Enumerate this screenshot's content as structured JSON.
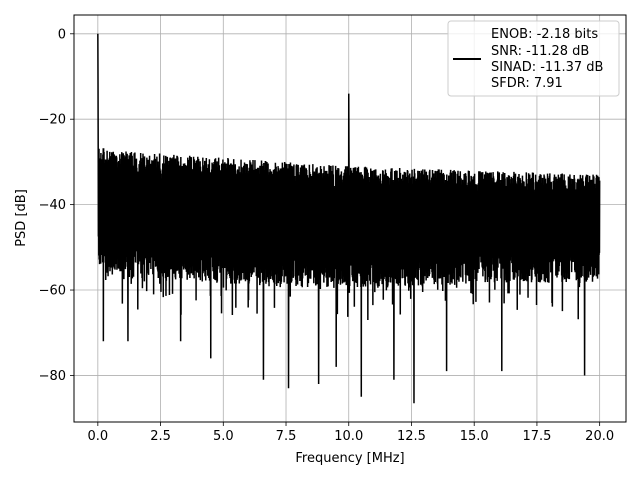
{
  "chart_data": {
    "type": "line",
    "title": "",
    "xlabel": "Frequency [MHz]",
    "ylabel": "PSD [dB]",
    "xlim": [
      -0.95,
      21.05
    ],
    "ylim": [
      -90.9,
      4.4
    ],
    "xticks": [
      0.0,
      2.5,
      5.0,
      7.5,
      10.0,
      12.5,
      15.0,
      17.5,
      20.0
    ],
    "xtick_labels": [
      "0.0",
      "2.5",
      "5.0",
      "7.5",
      "10.0",
      "12.5",
      "15.0",
      "17.5",
      "20.0"
    ],
    "yticks": [
      0,
      -20,
      -40,
      -60,
      -80
    ],
    "ytick_labels": [
      "0",
      "−20",
      "−40",
      "−60",
      "−80"
    ],
    "grid": true,
    "legend_position": "top-right",
    "legend_lines": [
      "ENOB: -2.18 bits",
      "SNR: -11.28 dB",
      "SINAD: -11.37 dB",
      "SFDR: 7.91"
    ],
    "line_color": "#000000",
    "series": [
      {
        "name": "",
        "x_range": [
          0.0,
          20.0
        ],
        "noise_upper_envelope": [
          [
            0.0,
            -26
          ],
          [
            0.3,
            -27
          ],
          [
            1.0,
            -27.5
          ],
          [
            2.5,
            -28
          ],
          [
            3.5,
            -28.5
          ],
          [
            5.0,
            -29
          ],
          [
            7.5,
            -30
          ],
          [
            10.0,
            -31
          ],
          [
            12.5,
            -31.5
          ],
          [
            15.0,
            -32
          ],
          [
            17.5,
            -32.5
          ],
          [
            20.0,
            -33
          ]
        ],
        "noise_lower_envelope": [
          [
            0.0,
            -52
          ],
          [
            0.5,
            -55
          ],
          [
            2.5,
            -55
          ],
          [
            5.0,
            -56
          ],
          [
            7.5,
            -57
          ],
          [
            10.0,
            -57
          ],
          [
            12.5,
            -57
          ],
          [
            15.0,
            -56
          ],
          [
            17.5,
            -56
          ],
          [
            20.0,
            -56
          ]
        ],
        "peaks": [
          {
            "x": 0.0,
            "y": 0.0
          },
          {
            "x": 10.0,
            "y": -14.0
          }
        ],
        "deep_dips": [
          {
            "x": 0.22,
            "y": -72
          },
          {
            "x": 1.2,
            "y": -72
          },
          {
            "x": 3.3,
            "y": -72
          },
          {
            "x": 4.5,
            "y": -76
          },
          {
            "x": 6.6,
            "y": -81
          },
          {
            "x": 7.6,
            "y": -83
          },
          {
            "x": 8.8,
            "y": -82
          },
          {
            "x": 9.5,
            "y": -78
          },
          {
            "x": 10.5,
            "y": -85
          },
          {
            "x": 11.8,
            "y": -81
          },
          {
            "x": 12.6,
            "y": -86.5
          },
          {
            "x": 13.9,
            "y": -79
          },
          {
            "x": 16.1,
            "y": -79
          },
          {
            "x": 19.4,
            "y": -80
          }
        ]
      }
    ]
  }
}
